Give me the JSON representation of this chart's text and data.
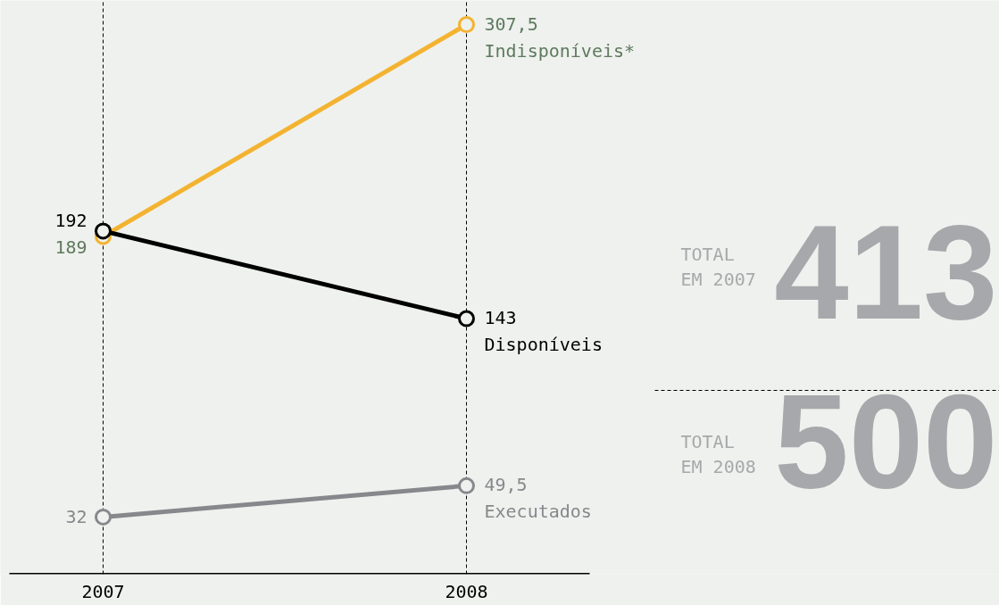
{
  "chart_data": {
    "type": "line",
    "categories": [
      "2007",
      "2008"
    ],
    "ylim": [
      0,
      321
    ],
    "grid": "x",
    "legend": false,
    "marker": "circle",
    "line_style": "solid",
    "series": [
      {
        "name": "Indisponíveis*",
        "color": "#f3b331",
        "values": [
          189,
          307.5
        ],
        "value_labels": [
          "189",
          "307,5"
        ]
      },
      {
        "name": "Disponíveis",
        "color": "#000000",
        "values": [
          192,
          143
        ],
        "value_labels": [
          "192",
          "143"
        ]
      },
      {
        "name": "Executados",
        "color": "#87888c",
        "values": [
          32,
          49.5
        ],
        "value_labels": [
          "32",
          "49,5"
        ]
      }
    ],
    "annotations": [
      "TOTAL\nEM 2007",
      "413",
      "TOTAL\nEM 2008",
      "500"
    ]
  }
}
